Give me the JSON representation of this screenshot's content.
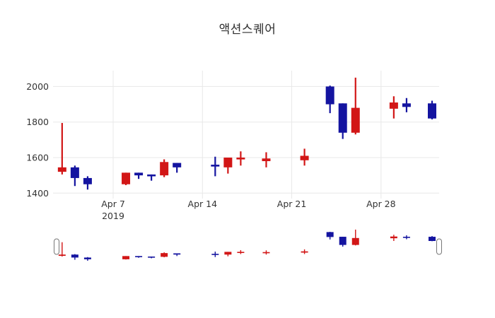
{
  "title_block": {
    "text": "액션스퀘어"
  },
  "colors": {
    "background": "#ffffff",
    "grid": "#e8e8e8",
    "tick_text": "#333333",
    "title_text": "#2f2f2f",
    "handle_border": "#777777",
    "handle_fill": "#ffffff"
  },
  "chart_data": {
    "type": "candlestick",
    "title": "액션스퀘어",
    "legend": "none",
    "grid": true,
    "rangeslider": true,
    "increasing_color": "#d21616",
    "decreasing_color": "#1414a0",
    "ylim": [
      1368,
      2084
    ],
    "y_ticks": [
      1400,
      1600,
      1800,
      2000
    ],
    "x_ticks": [
      {
        "date": "2019-04-07",
        "label": "Apr 7",
        "sublabel": "2019"
      },
      {
        "date": "2019-04-14",
        "label": "Apr 14",
        "sublabel": ""
      },
      {
        "date": "2019-04-21",
        "label": "Apr 21",
        "sublabel": ""
      },
      {
        "date": "2019-04-28",
        "label": "Apr 28",
        "sublabel": ""
      }
    ],
    "x": [
      "2019-04-03",
      "2019-04-04",
      "2019-04-05",
      "2019-04-08",
      "2019-04-09",
      "2019-04-10",
      "2019-04-11",
      "2019-04-12",
      "2019-04-15",
      "2019-04-16",
      "2019-04-17",
      "2019-04-19",
      "2019-04-22",
      "2019-04-24",
      "2019-04-25",
      "2019-04-26",
      "2019-04-29",
      "2019-04-30",
      "2019-05-02"
    ],
    "open": [
      1520,
      1545,
      1485,
      1450,
      1515,
      1505,
      1500,
      1570,
      1560,
      1545,
      1590,
      1580,
      1585,
      2000,
      1905,
      1740,
      1875,
      1905,
      1905
    ],
    "high": [
      1795,
      1555,
      1495,
      1515,
      1515,
      1505,
      1590,
      1570,
      1605,
      1600,
      1635,
      1630,
      1650,
      2005,
      1905,
      2050,
      1945,
      1935,
      1920
    ],
    "low": [
      1505,
      1440,
      1420,
      1445,
      1480,
      1470,
      1490,
      1515,
      1495,
      1510,
      1555,
      1545,
      1555,
      1850,
      1705,
      1730,
      1820,
      1855,
      1815
    ],
    "close": [
      1545,
      1485,
      1450,
      1515,
      1500,
      1495,
      1575,
      1545,
      1550,
      1600,
      1600,
      1595,
      1610,
      1900,
      1740,
      1880,
      1910,
      1885,
      1820
    ]
  }
}
